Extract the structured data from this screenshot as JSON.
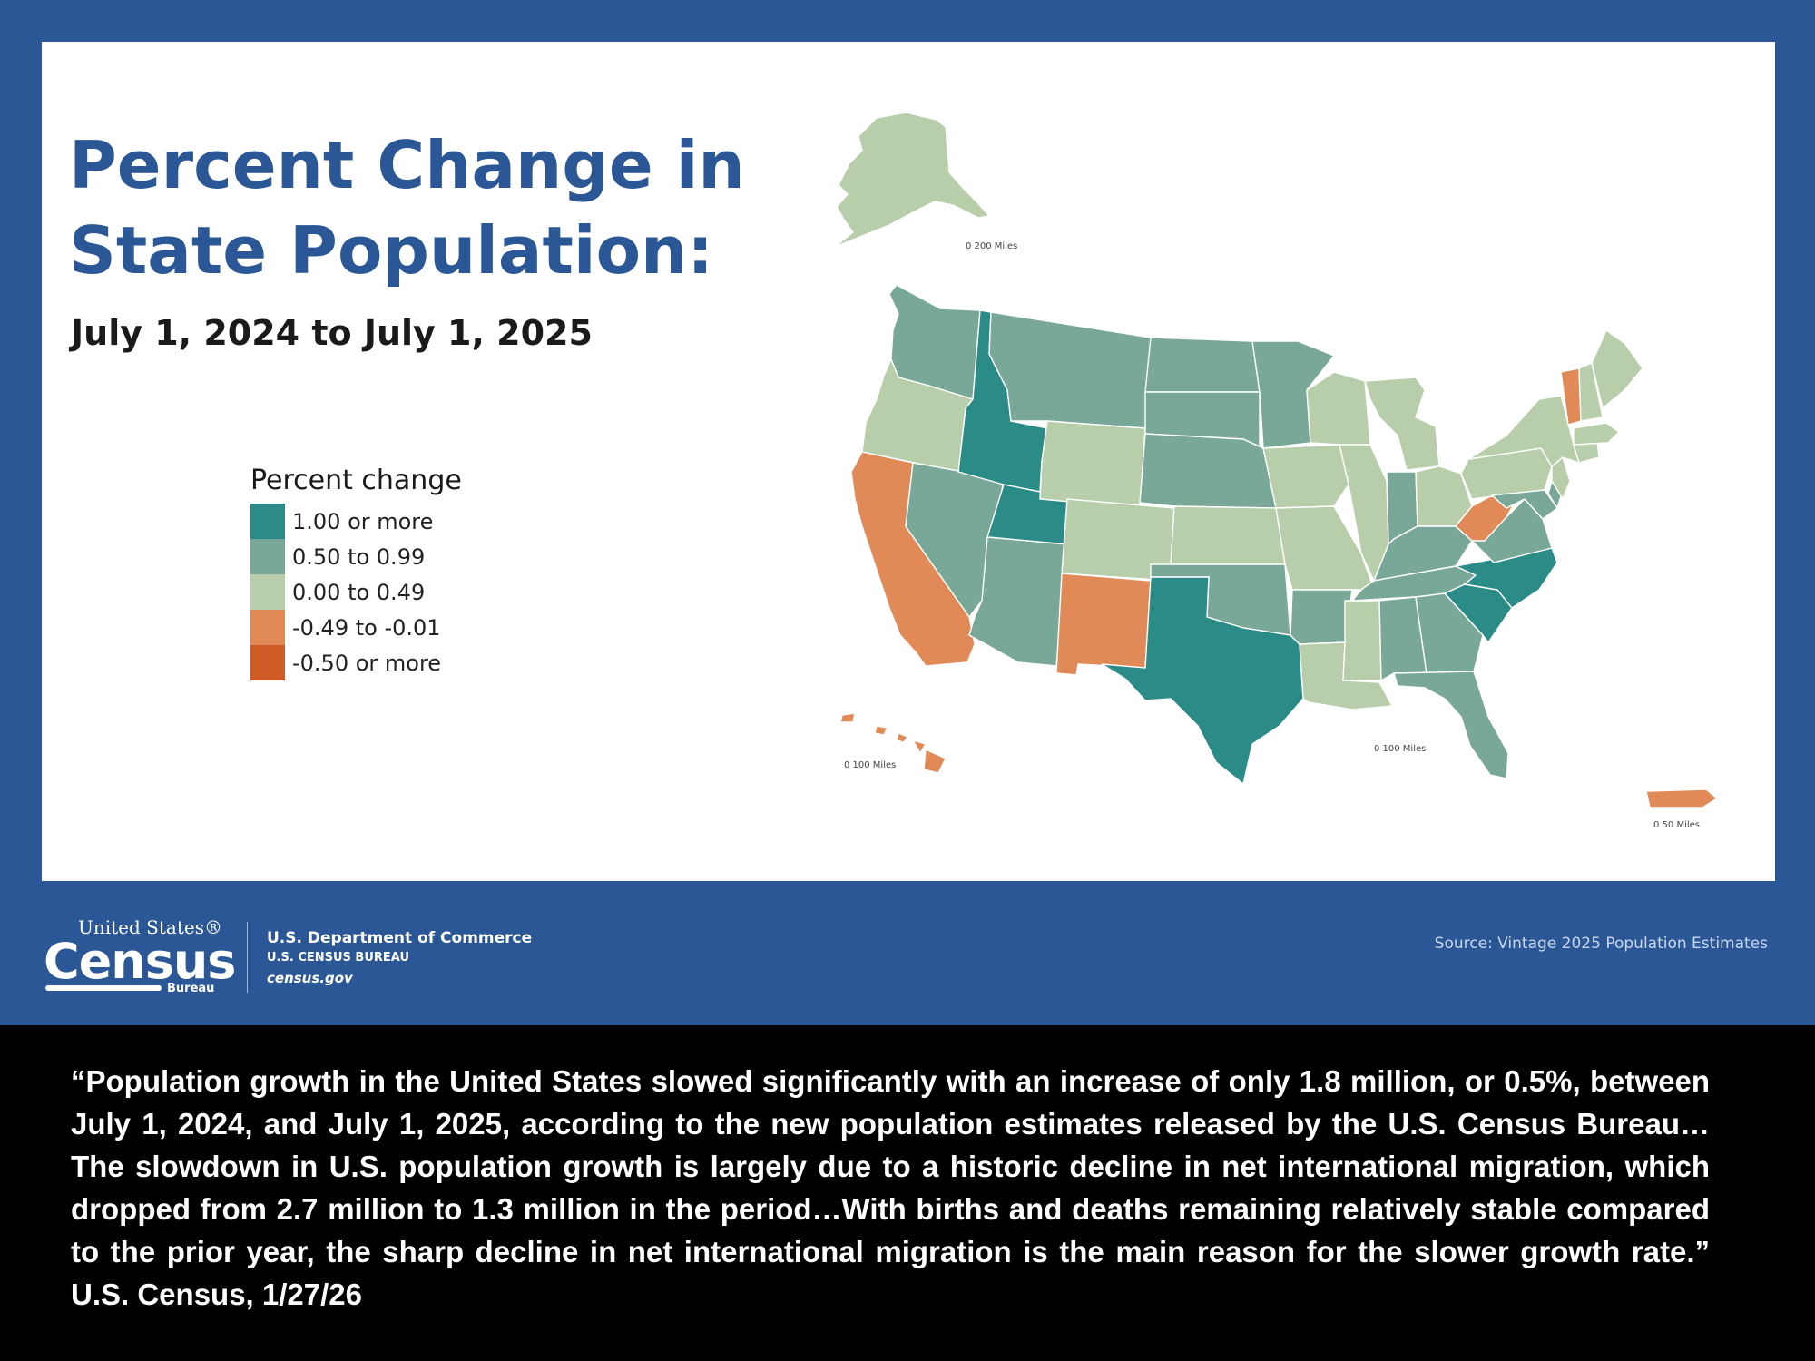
{
  "map": {
    "title": "Percent Change in State Population:",
    "subtitle": "July 1, 2024 to July 1, 2025",
    "legend": {
      "title": "Percent change",
      "items": [
        {
          "label": "1.00 or more",
          "color": "#2b8b87"
        },
        {
          "label": "0.50 to 0.99",
          "color": "#79a898"
        },
        {
          "label": "0.00 to 0.49",
          "color": "#b8ceaa"
        },
        {
          "label": "-0.49 to -0.01",
          "color": "#e28a57"
        },
        {
          "label": "-0.50 or more",
          "color": "#cf5c26"
        }
      ]
    },
    "scale_labels": {
      "alaska": "0   200 Miles",
      "hawaii": "0   100 Miles",
      "mainland": "0   100 Miles",
      "puerto_rico": "0   50 Miles"
    },
    "state_categories": {
      "Washington": "0.50 to 0.99",
      "Oregon": "0.00 to 0.49",
      "California": "-0.49 to -0.01",
      "Nevada": "0.50 to 0.99",
      "Idaho": "1.00 or more",
      "Utah": "1.00 or more",
      "Arizona": "0.50 to 0.99",
      "Montana": "0.50 to 0.99",
      "Wyoming": "0.00 to 0.49",
      "Colorado": "0.00 to 0.49",
      "New Mexico": "-0.49 to -0.01",
      "North Dakota": "0.50 to 0.99",
      "South Dakota": "0.50 to 0.99",
      "Nebraska": "0.50 to 0.99",
      "Kansas": "0.00 to 0.49",
      "Oklahoma": "0.50 to 0.99",
      "Texas": "1.00 or more",
      "Minnesota": "0.50 to 0.99",
      "Iowa": "0.00 to 0.49",
      "Missouri": "0.00 to 0.49",
      "Arkansas": "0.50 to 0.99",
      "Louisiana": "0.00 to 0.49",
      "Wisconsin": "0.00 to 0.49",
      "Illinois": "0.00 to 0.49",
      "Michigan": "0.00 to 0.49",
      "Indiana": "0.50 to 0.99",
      "Ohio": "0.00 to 0.49",
      "Kentucky": "0.50 to 0.99",
      "Tennessee": "0.50 to 0.99",
      "Mississippi": "0.00 to 0.49",
      "Alabama": "0.50 to 0.99",
      "Georgia": "0.50 to 0.99",
      "Florida": "0.50 to 0.99",
      "South Carolina": "1.00 or more",
      "North Carolina": "1.00 or more",
      "Virginia": "0.50 to 0.99",
      "West Virginia": "-0.49 to -0.01",
      "Pennsylvania": "0.00 to 0.49",
      "New York": "0.00 to 0.49",
      "Vermont": "-0.49 to -0.01",
      "New Hampshire": "0.00 to 0.49",
      "Maine": "0.00 to 0.49",
      "Massachusetts": "0.00 to 0.49",
      "Connecticut": "0.00 to 0.49",
      "New Jersey": "0.00 to 0.49",
      "Maryland": "0.50 to 0.99",
      "Delaware": "0.50 to 0.99",
      "Alaska": "0.00 to 0.49",
      "Hawaii": "-0.49 to -0.01",
      "Puerto Rico": "-0.49 to -0.01"
    }
  },
  "footer": {
    "logo_top": "United States®",
    "logo_main": "Census",
    "logo_bureau": "Bureau",
    "dept_line1": "U.S. Department of Commerce",
    "dept_line2": "U.S. CENSUS BUREAU",
    "dept_line3": "census.gov",
    "source": "Source: Vintage 2025 Population Estimates"
  },
  "quote": "“Population growth in the United States slowed significantly with an increase of only 1.8 million, or 0.5%, between July 1, 2024, and July 1, 2025, according to the new population estimates released by the U.S. Census Bureau…The slowdown in U.S. population growth is largely due to a historic decline in net international migration, which dropped from 2.7 million to 1.3 million in the period…With births and deaths remaining relatively stable compared to the prior year, the sharp decline in net international migration is the main reason for the slower growth rate.” U.S. Census, 1/27/26"
}
